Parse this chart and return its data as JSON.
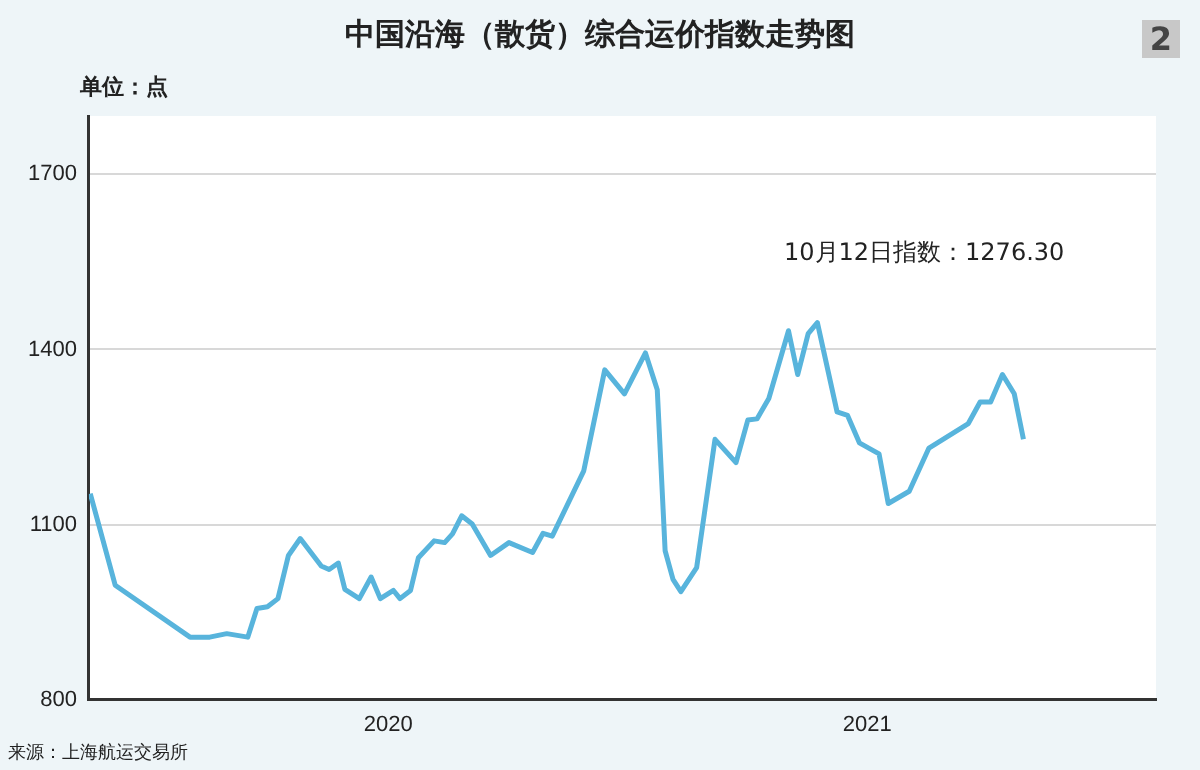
{
  "chart_data": {
    "type": "line",
    "title": "中国沿海（散货）综合运价指数走势图",
    "ylabel": "单位：点",
    "annotations": [
      "10月12日指数：1276.30",
      "来源：上海航运交易所",
      "2"
    ],
    "x": [
      "2019-11-17",
      "2019-12-06",
      "2020-02-01",
      "2020-02-16",
      "2020-02-29",
      "2020-03-16",
      "2020-03-23",
      "2020-03-31",
      "2020-04-08",
      "2020-04-16",
      "2020-04-25",
      "2020-05-11",
      "2020-05-17",
      "2020-05-24",
      "2020-05-29",
      "2020-06-09",
      "2020-06-18",
      "2020-06-25",
      "2020-07-05",
      "2020-07-10",
      "2020-07-18",
      "2020-07-24",
      "2020-08-05",
      "2020-08-13",
      "2020-08-19",
      "2020-08-26",
      "2020-09-03",
      "2020-09-17",
      "2020-10-01",
      "2020-10-19",
      "2020-10-27",
      "2020-11-03",
      "2020-11-27",
      "2020-12-13",
      "2020-12-28",
      "2021-01-13",
      "2021-01-22",
      "2021-01-28",
      "2021-02-03",
      "2021-02-09",
      "2021-02-21",
      "2021-03-07",
      "2021-03-23",
      "2021-04-01",
      "2021-04-08",
      "2021-04-17",
      "2021-05-02",
      "2021-05-09",
      "2021-05-17",
      "2021-05-24",
      "2021-06-08",
      "2021-06-16",
      "2021-06-25",
      "2021-07-10",
      "2021-07-17",
      "2021-08-02",
      "2021-08-17",
      "2021-09-16",
      "2021-09-25",
      "2021-10-03",
      "2021-10-12",
      "2021-10-21",
      "2021-10-28"
    ],
    "series": [
      {
        "color": "#58b4dc",
        "values": [
          1153,
          996,
          907,
          907,
          913,
          907,
          956,
          959,
          973,
          1047,
          1076,
          1029,
          1023,
          1034,
          989,
          973,
          1010,
          973,
          987,
          973,
          987,
          1043,
          1072,
          1069,
          1084,
          1115,
          1101,
          1047,
          1069,
          1052,
          1085,
          1080,
          1192,
          1365,
          1324,
          1394,
          1331,
          1055,
          1006,
          985,
          1026,
          1246,
          1206,
          1279,
          1281,
          1316,
          1432,
          1357,
          1427,
          1446,
          1293,
          1287,
          1240,
          1221,
          1136,
          1157,
          1231,
          1273,
          1310,
          1310,
          1357,
          1324,
          1246
        ]
      }
    ],
    "xlim": [
      "2019-11-16",
      "2022-02-06"
    ],
    "xticks": [
      {
        "value": "2020-07-01",
        "label": "2020"
      },
      {
        "value": "2021-07-01",
        "label": "2021"
      }
    ],
    "ylim": [
      800,
      1800
    ],
    "yticks": [
      800,
      1100,
      1400,
      1700
    ],
    "grid": "y",
    "legend": false,
    "marker": "none",
    "line_style": "solid"
  }
}
